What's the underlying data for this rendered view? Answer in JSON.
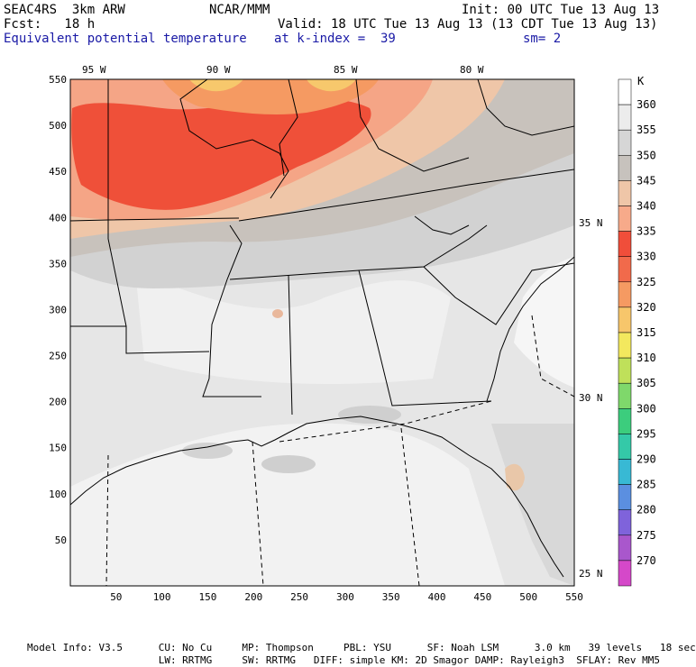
{
  "header": {
    "model": "SEAC4RS  3km ARW",
    "org": "NCAR/MMM",
    "init": "Init: 00 UTC Tue 13 Aug 13",
    "fcst": "Fcst:   18 h",
    "valid": "Valid: 18 UTC Tue 13 Aug 13 (13 CDT Tue 13 Aug 13)",
    "field": "Equivalent potential temperature",
    "level": "at k-index =  39",
    "smooth": "sm= 2"
  },
  "map": {
    "lon_labels": [
      "95 W",
      "90 W",
      "85 W",
      "80 W"
    ],
    "lat_labels": [
      "35 N",
      "30 N",
      "25 N"
    ],
    "y_ticks": [
      "550",
      "500",
      "450",
      "400",
      "350",
      "300",
      "250",
      "200",
      "150",
      "100",
      "50"
    ],
    "x_ticks": [
      "50",
      "100",
      "150",
      "200",
      "250",
      "300",
      "350",
      "400",
      "450",
      "500",
      "550"
    ]
  },
  "legend": {
    "unit": "K",
    "levels": [
      {
        "label": "360",
        "color": "#ffffff"
      },
      {
        "label": "355",
        "color": "#ececec"
      },
      {
        "label": "350",
        "color": "#d6d6d6"
      },
      {
        "label": "345",
        "color": "#c7c2bd"
      },
      {
        "label": "340",
        "color": "#efc6a8"
      },
      {
        "label": "335",
        "color": "#f7aa8a"
      },
      {
        "label": "330",
        "color": "#f04e3a"
      },
      {
        "label": "325",
        "color": "#f16a4b"
      },
      {
        "label": "320",
        "color": "#f59a62"
      },
      {
        "label": "315",
        "color": "#f7c66b"
      },
      {
        "label": "310",
        "color": "#f3e85e"
      },
      {
        "label": "305",
        "color": "#bfe05a"
      },
      {
        "label": "300",
        "color": "#7fd86b"
      },
      {
        "label": "295",
        "color": "#3ccd7d"
      },
      {
        "label": "290",
        "color": "#34c9a8"
      },
      {
        "label": "285",
        "color": "#38b9d4"
      },
      {
        "label": "280",
        "color": "#5b8fe0"
      },
      {
        "label": "275",
        "color": "#7f63db"
      },
      {
        "label": "270",
        "color": "#a957cc"
      },
      {
        "label": "",
        "color": "#d548c9"
      }
    ]
  },
  "footer": {
    "line1": "Model Info: V3.5      CU: No Cu     MP: Thompson     PBL: YSU      SF: Noah LSM      3.0 km   39 levels   18 sec",
    "line2": "                      LW: RRTMG     SW: RRTMG   DIFF: simple KM: 2D Smagor DAMP: Rayleigh3  SFLAY: Rev MM5"
  }
}
